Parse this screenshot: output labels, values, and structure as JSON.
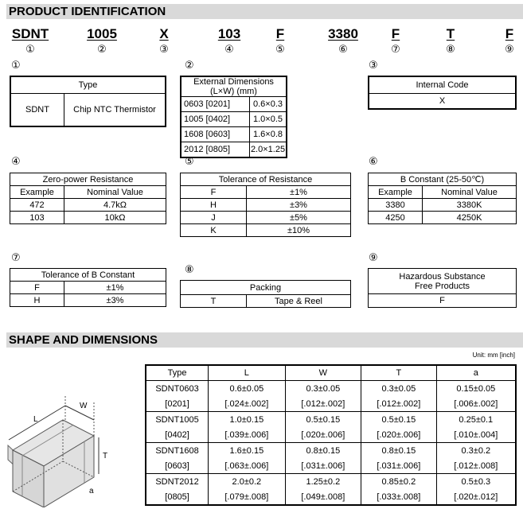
{
  "section1": {
    "title": "PRODUCT IDENTIFICATION"
  },
  "code": {
    "parts": [
      "SDNT",
      "1005",
      "X",
      "103",
      "F",
      "3380",
      "F",
      "T",
      "F"
    ],
    "numbers": [
      "①",
      "②",
      "③",
      "④",
      "⑤",
      "⑥",
      "⑦",
      "⑧",
      "⑨"
    ]
  },
  "type_table": {
    "marker": "①",
    "header": "Type",
    "code": "SDNT",
    "desc": "Chip NTC Thermistor"
  },
  "dims_table": {
    "marker": "②",
    "header": "External Dimensions (L×W) (mm)",
    "rows": [
      [
        "0603 [0201]",
        "0.6×0.3"
      ],
      [
        "1005 [0402]",
        "1.0×0.5"
      ],
      [
        "1608 [0603]",
        "1.6×0.8"
      ],
      [
        "2012 [0805]",
        "2.0×1.25"
      ]
    ]
  },
  "internal_table": {
    "marker": "③",
    "header": "Internal Code",
    "value": "X"
  },
  "zero_power": {
    "marker": "④",
    "header": "Zero-power Resistance",
    "cols": [
      "Example",
      "Nominal Value"
    ],
    "rows": [
      [
        "472",
        "4.7kΩ"
      ],
      [
        "103",
        "10kΩ"
      ]
    ]
  },
  "tol_res": {
    "marker": "⑤",
    "header": "Tolerance of Resistance",
    "rows": [
      [
        "F",
        "±1%"
      ],
      [
        "H",
        "±3%"
      ],
      [
        "J",
        "±5%"
      ],
      [
        "K",
        "±10%"
      ]
    ]
  },
  "b_const": {
    "marker": "⑥",
    "header": "B Constant (25-50℃)",
    "cols": [
      "Example",
      "Nominal Value"
    ],
    "rows": [
      [
        "3380",
        "3380K"
      ],
      [
        "4250",
        "4250K"
      ]
    ]
  },
  "tol_b": {
    "marker": "⑦",
    "header": "Tolerance of B Constant",
    "rows": [
      [
        "F",
        "±1%"
      ],
      [
        "H",
        "±3%"
      ]
    ]
  },
  "packing": {
    "marker": "⑧",
    "header": "Packing",
    "rows": [
      [
        "T",
        "Tape & Reel"
      ]
    ]
  },
  "hazard": {
    "marker": "⑨",
    "header_line1": "Hazardous Substance",
    "header_line2": "Free Products",
    "value": "F"
  },
  "section2": {
    "title": "SHAPE AND DIMENSIONS",
    "unit": "Unit: mm [inch]"
  },
  "drawing": {
    "labels": [
      "L",
      "W",
      "T",
      "a"
    ]
  },
  "dim_table": {
    "cols": [
      "Type",
      "L",
      "W",
      "T",
      "a"
    ],
    "rows": [
      {
        "type": [
          "SDNT0603",
          "[0201]"
        ],
        "L": [
          "0.6±0.05",
          "[.024±.002]"
        ],
        "W": [
          "0.3±0.05",
          "[.012±.002]"
        ],
        "T": [
          "0.3±0.05",
          "[.012±.002]"
        ],
        "a": [
          "0.15±0.05",
          "[.006±.002]"
        ]
      },
      {
        "type": [
          "SDNT1005",
          "[0402]"
        ],
        "L": [
          "1.0±0.15",
          "[.039±.006]"
        ],
        "W": [
          "0.5±0.15",
          "[.020±.006]"
        ],
        "T": [
          "0.5±0.15",
          "[.020±.006]"
        ],
        "a": [
          "0.25±0.1",
          "[.010±.004]"
        ]
      },
      {
        "type": [
          "SDNT1608",
          "[0603]"
        ],
        "L": [
          "1.6±0.15",
          "[.063±.006]"
        ],
        "W": [
          "0.8±0.15",
          "[.031±.006]"
        ],
        "T": [
          "0.8±0.15",
          "[.031±.006]"
        ],
        "a": [
          "0.3±0.2",
          "[.012±.008]"
        ]
      },
      {
        "type": [
          "SDNT2012",
          "[0805]"
        ],
        "L": [
          "2.0±0.2",
          "[.079±.008]"
        ],
        "W": [
          "1.25±0.2",
          "[.049±.008]"
        ],
        "T": [
          "0.85±0.2",
          "[.033±.008]"
        ],
        "a": [
          "0.5±0.3",
          "[.020±.012]"
        ]
      }
    ]
  }
}
